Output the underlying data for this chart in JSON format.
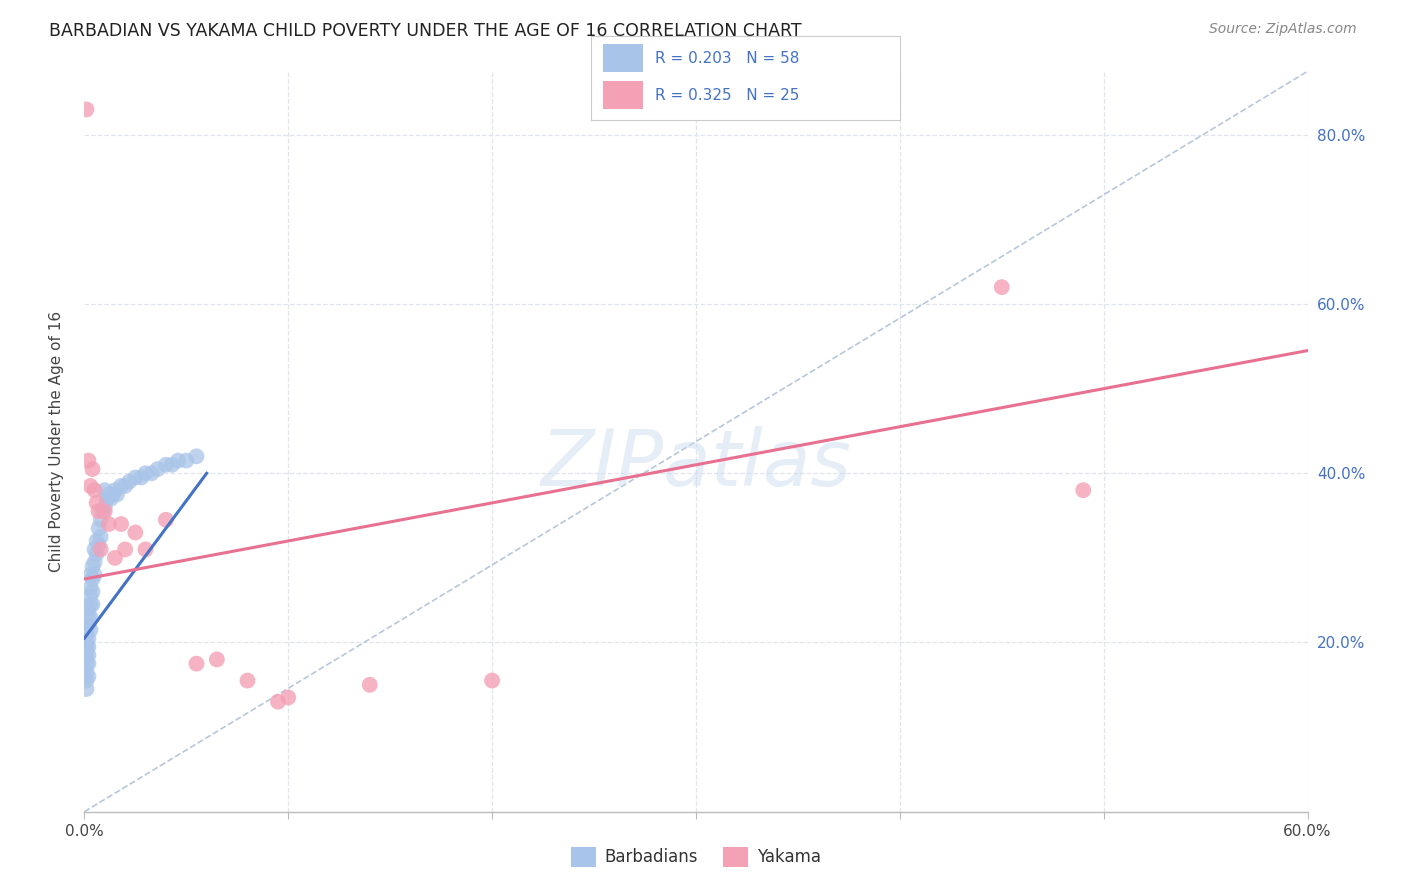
{
  "title": "BARBADIAN VS YAKAMA CHILD POVERTY UNDER THE AGE OF 16 CORRELATION CHART",
  "source": "Source: ZipAtlas.com",
  "ylabel": "Child Poverty Under the Age of 16",
  "xlim": [
    0.0,
    0.6
  ],
  "ylim": [
    0.0,
    0.875
  ],
  "xticks": [
    0.0,
    0.1,
    0.2,
    0.3,
    0.4,
    0.5,
    0.6
  ],
  "yticks": [
    0.0,
    0.2,
    0.4,
    0.6,
    0.8
  ],
  "barbadian_color": "#a8c4e8",
  "yakama_color": "#f4a0b5",
  "barbadian_line_color": "#4472c4",
  "yakama_line_color": "#e87090",
  "diag_line_color": "#a0b4d0",
  "watermark": "ZIPatlas",
  "legend_text_color": "#4472c4",
  "background_color": "#ffffff",
  "grid_color": "#e0e4ee",
  "barbadian_x": [
    0.001,
    0.001,
    0.001,
    0.001,
    0.001,
    0.001,
    0.001,
    0.001,
    0.001,
    0.002,
    0.002,
    0.002,
    0.002,
    0.002,
    0.002,
    0.002,
    0.002,
    0.003,
    0.003,
    0.003,
    0.003,
    0.003,
    0.003,
    0.004,
    0.004,
    0.004,
    0.004,
    0.005,
    0.005,
    0.005,
    0.006,
    0.006,
    0.007,
    0.007,
    0.008,
    0.008,
    0.009,
    0.01,
    0.01,
    0.011,
    0.012,
    0.013,
    0.014,
    0.015,
    0.016,
    0.018,
    0.02,
    0.022,
    0.025,
    0.028,
    0.03,
    0.033,
    0.036,
    0.04,
    0.043,
    0.046,
    0.05,
    0.055
  ],
  "barbadian_y": [
    0.22,
    0.21,
    0.2,
    0.195,
    0.185,
    0.175,
    0.165,
    0.155,
    0.145,
    0.24,
    0.23,
    0.22,
    0.205,
    0.195,
    0.185,
    0.175,
    0.16,
    0.28,
    0.265,
    0.255,
    0.245,
    0.23,
    0.215,
    0.29,
    0.275,
    0.26,
    0.245,
    0.31,
    0.295,
    0.28,
    0.32,
    0.305,
    0.335,
    0.315,
    0.345,
    0.325,
    0.355,
    0.38,
    0.36,
    0.37,
    0.375,
    0.37,
    0.375,
    0.38,
    0.375,
    0.385,
    0.385,
    0.39,
    0.395,
    0.395,
    0.4,
    0.4,
    0.405,
    0.41,
    0.41,
    0.415,
    0.415,
    0.42
  ],
  "yakama_x": [
    0.001,
    0.002,
    0.003,
    0.004,
    0.005,
    0.006,
    0.007,
    0.008,
    0.01,
    0.012,
    0.015,
    0.018,
    0.02,
    0.025,
    0.03,
    0.04,
    0.055,
    0.065,
    0.08,
    0.095,
    0.1,
    0.14,
    0.2,
    0.45,
    0.49
  ],
  "yakama_y": [
    0.83,
    0.415,
    0.385,
    0.405,
    0.38,
    0.365,
    0.355,
    0.31,
    0.355,
    0.34,
    0.3,
    0.34,
    0.31,
    0.33,
    0.31,
    0.345,
    0.175,
    0.18,
    0.155,
    0.13,
    0.135,
    0.15,
    0.155,
    0.62,
    0.38
  ],
  "barbadian_trend_x0": 0.0,
  "barbadian_trend_y0": 0.205,
  "barbadian_trend_x1": 0.06,
  "barbadian_trend_y1": 0.4,
  "yakama_trend_x0": 0.0,
  "yakama_trend_y0": 0.275,
  "yakama_trend_x1": 0.6,
  "yakama_trend_y1": 0.545
}
